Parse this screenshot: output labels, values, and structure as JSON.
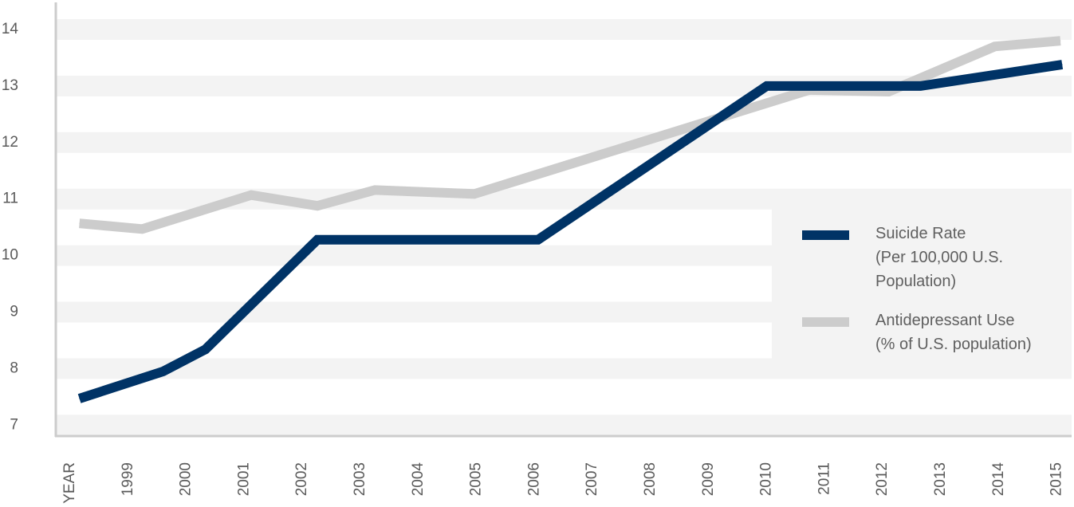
{
  "chart_data": {
    "type": "line",
    "title": "",
    "xlabel": "YEAR",
    "ylabel": "",
    "ylim": [
      7,
      14
    ],
    "yticks": [
      "7",
      "8",
      "9",
      "10",
      "11",
      "12",
      "13",
      "14"
    ],
    "xticks": [
      "YEAR",
      "1999",
      "2000",
      "2001",
      "2002",
      "2003",
      "2004",
      "2005",
      "2006",
      "2007",
      "2008",
      "2009",
      "2010",
      "2011",
      "2012",
      "2013",
      "2014",
      "2015"
    ],
    "grid": "alternating horizontal bands",
    "legend_position": "right",
    "series": [
      {
        "name": "Suicide Rate (Per 100,000 U.S. Population)",
        "legend_lines": [
          "Suicide Rate",
          "(Per 100,000 U.S.",
          "Population)"
        ],
        "color": "#003366",
        "points": [
          [
            1998.16,
            7.47
          ],
          [
            1999.6,
            7.95
          ],
          [
            2000.33,
            8.34
          ],
          [
            2002.26,
            10.28
          ],
          [
            2006.06,
            10.28
          ],
          [
            2010.0,
            13.0
          ],
          [
            2012.65,
            13.0
          ],
          [
            2015.09,
            13.38
          ]
        ]
      },
      {
        "name": "Antidepressant Use (% of U.S. population)",
        "legend_lines": [
          "Antidepressant Use",
          "(% of U.S. population)"
        ],
        "color": "#cccccc",
        "points": [
          [
            1998.16,
            10.57
          ],
          [
            1999.24,
            10.47
          ],
          [
            2001.12,
            11.07
          ],
          [
            2002.26,
            10.88
          ],
          [
            2003.25,
            11.16
          ],
          [
            2004.96,
            11.09
          ],
          [
            2010.73,
            12.93
          ],
          [
            2012.1,
            12.9
          ],
          [
            2013.93,
            13.7
          ],
          [
            2015.06,
            13.8
          ]
        ]
      }
    ]
  },
  "colors": {
    "band": "#f3f3f3",
    "axis": "#cccccc",
    "text": "#5a5a5a"
  }
}
